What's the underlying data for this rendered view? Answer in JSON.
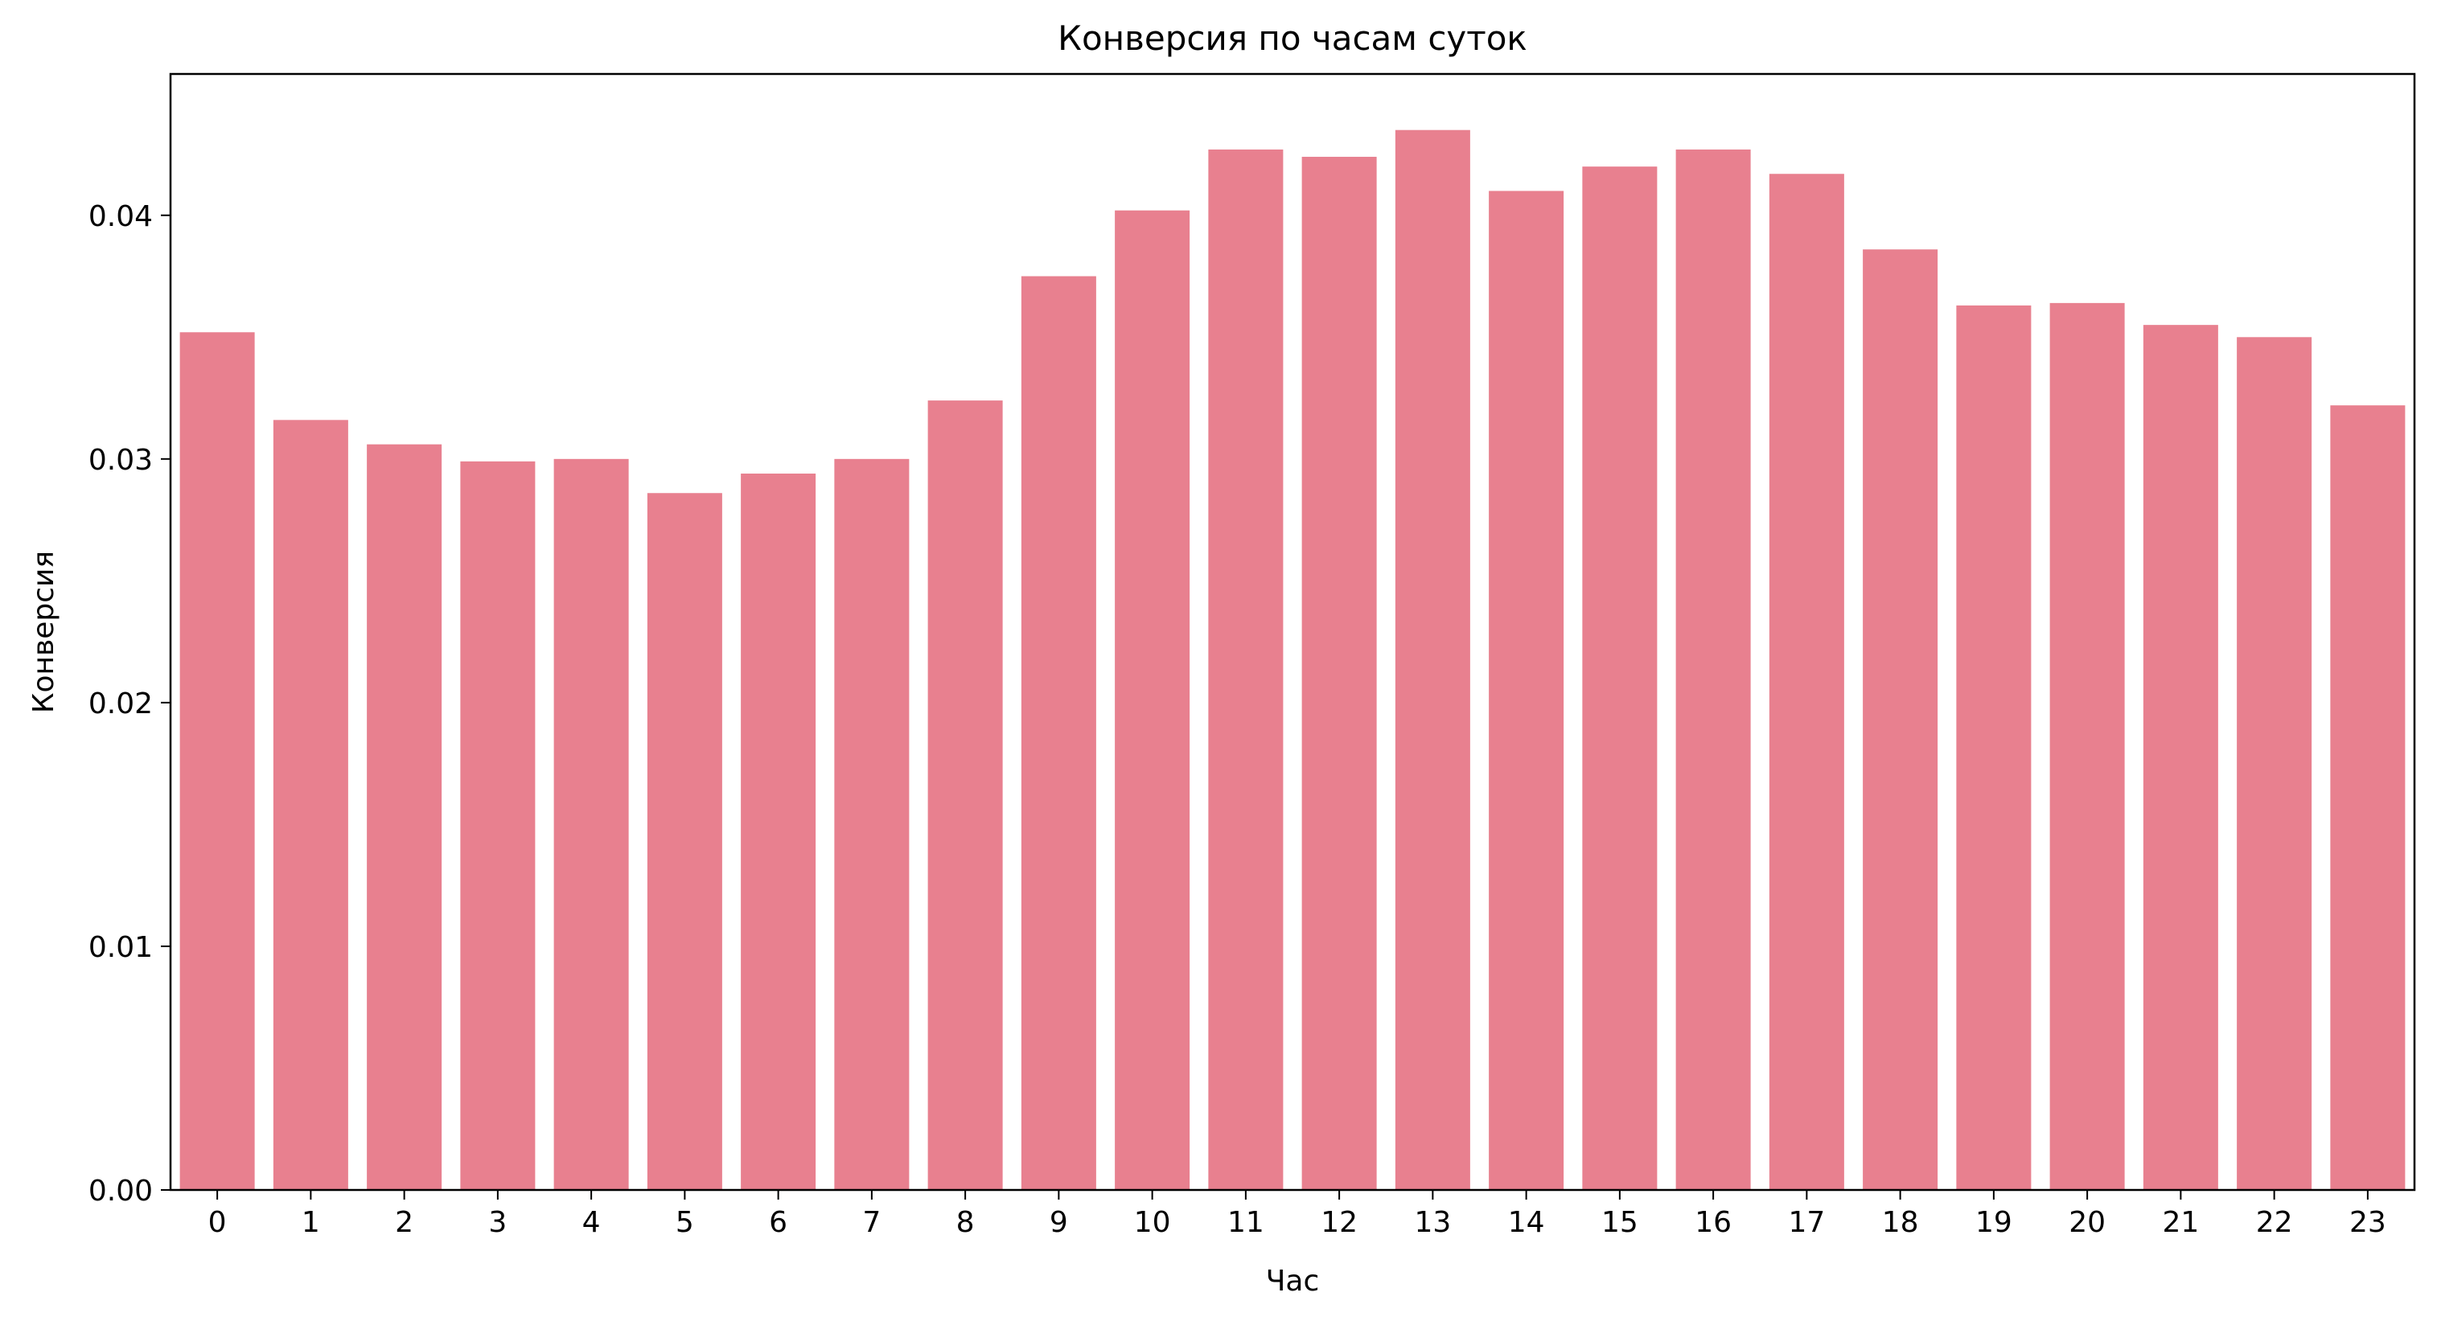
{
  "chart_data": {
    "type": "bar",
    "title": "Конверсия по часам суток",
    "xlabel": "Час",
    "ylabel": "Конверсия",
    "categories": [
      "0",
      "1",
      "2",
      "3",
      "4",
      "5",
      "6",
      "7",
      "8",
      "9",
      "10",
      "11",
      "12",
      "13",
      "14",
      "15",
      "16",
      "17",
      "18",
      "19",
      "20",
      "21",
      "22",
      "23"
    ],
    "values": [
      0.0352,
      0.0316,
      0.0306,
      0.0299,
      0.03,
      0.0286,
      0.0294,
      0.03,
      0.0324,
      0.0375,
      0.0402,
      0.0427,
      0.0424,
      0.0435,
      0.041,
      0.042,
      0.0427,
      0.0417,
      0.0386,
      0.0363,
      0.0364,
      0.0355,
      0.035,
      0.0322
    ],
    "ylim": [
      0,
      0.0458
    ],
    "yticks": [
      "0.00",
      "0.01",
      "0.02",
      "0.03",
      "0.04"
    ],
    "ytick_values": [
      0,
      0.01,
      0.02,
      0.03,
      0.04
    ],
    "grid": false,
    "legend": "none",
    "bar_color": "#e8808f"
  }
}
